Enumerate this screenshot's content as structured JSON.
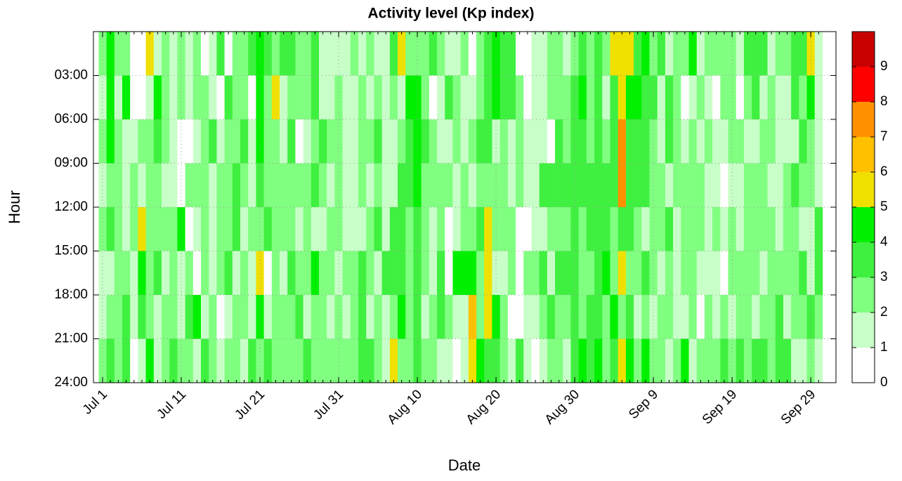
{
  "chart_data": {
    "type": "heatmap",
    "title": "Activity level (Kp index)",
    "x_label": "Date",
    "y_label": "Hour",
    "x": [
      0,
      1,
      2,
      3,
      4,
      5,
      6,
      7,
      8,
      9,
      10,
      11,
      12,
      13,
      14,
      15,
      16,
      17,
      18,
      19,
      20,
      21,
      22,
      23,
      24,
      25,
      26,
      27,
      28,
      29,
      30,
      31,
      32,
      33,
      34,
      35,
      36,
      37,
      38,
      39,
      40,
      41,
      42,
      43,
      44,
      45,
      46,
      47,
      48,
      49,
      50,
      51,
      52,
      53,
      54,
      55,
      56,
      57,
      58,
      59,
      60,
      61,
      62,
      63,
      64,
      65,
      66,
      67,
      68,
      69,
      70,
      71,
      72,
      73,
      74,
      75,
      76,
      77,
      78,
      79,
      80,
      81,
      82,
      83,
      84,
      85,
      86,
      87,
      88,
      89,
      90,
      91
    ],
    "y_bins": [
      0,
      3,
      6,
      9,
      12,
      15,
      18,
      21,
      24
    ],
    "z": [
      [
        2,
        4,
        2,
        2,
        0,
        0,
        5,
        1,
        2,
        1,
        2,
        1,
        2,
        0,
        1,
        3,
        0,
        2,
        2,
        3,
        4,
        3,
        2,
        3,
        3,
        2,
        2,
        3,
        1,
        1,
        1,
        1,
        2,
        1,
        2,
        1,
        1,
        3,
        5,
        2,
        2,
        2,
        3,
        2,
        1,
        1,
        2,
        0,
        2,
        3,
        4,
        3,
        3,
        0,
        0,
        1,
        1,
        2,
        2,
        1,
        2,
        3,
        2,
        3,
        2,
        5,
        5,
        5,
        3,
        4,
        2,
        3,
        1,
        2,
        2,
        4,
        1,
        2,
        2,
        2,
        2,
        1,
        3,
        3,
        3,
        1,
        2,
        2,
        3,
        3,
        5,
        1
      ],
      [
        1,
        4,
        1,
        4,
        0,
        0,
        1,
        4,
        2,
        1,
        2,
        1,
        2,
        2,
        1,
        0,
        3,
        2,
        2,
        0,
        4,
        2,
        5,
        1,
        2,
        2,
        2,
        3,
        1,
        1,
        2,
        1,
        1,
        2,
        1,
        2,
        1,
        2,
        1,
        4,
        4,
        2,
        0,
        1,
        3,
        2,
        1,
        1,
        2,
        3,
        4,
        3,
        3,
        2,
        0,
        1,
        1,
        2,
        2,
        2,
        3,
        4,
        2,
        3,
        1,
        3,
        5,
        4,
        4,
        3,
        3,
        1,
        3,
        2,
        0,
        1,
        2,
        1,
        0,
        2,
        2,
        0,
        2,
        3,
        1,
        2,
        1,
        1,
        3,
        2,
        4,
        1
      ],
      [
        2,
        4,
        2,
        1,
        1,
        2,
        2,
        3,
        2,
        1,
        0,
        0,
        1,
        2,
        3,
        1,
        2,
        2,
        3,
        1,
        4,
        2,
        2,
        1,
        3,
        0,
        1,
        2,
        3,
        2,
        2,
        1,
        1,
        2,
        2,
        3,
        1,
        1,
        2,
        3,
        4,
        3,
        2,
        1,
        1,
        2,
        1,
        2,
        3,
        3,
        1,
        2,
        1,
        2,
        1,
        1,
        1,
        0,
        3,
        2,
        3,
        3,
        2,
        3,
        2,
        3,
        7,
        3,
        3,
        3,
        2,
        1,
        3,
        2,
        1,
        2,
        1,
        2,
        1,
        1,
        2,
        2,
        1,
        1,
        2,
        2,
        1,
        1,
        1,
        3,
        2,
        1
      ],
      [
        1,
        2,
        2,
        1,
        2,
        1,
        2,
        2,
        1,
        1,
        0,
        2,
        2,
        2,
        1,
        2,
        2,
        3,
        2,
        1,
        3,
        2,
        2,
        2,
        2,
        2,
        2,
        3,
        2,
        1,
        2,
        1,
        1,
        2,
        1,
        2,
        1,
        1,
        3,
        3,
        4,
        2,
        2,
        2,
        2,
        1,
        2,
        1,
        2,
        2,
        2,
        2,
        1,
        2,
        1,
        1,
        3,
        3,
        3,
        3,
        3,
        3,
        3,
        3,
        3,
        3,
        7,
        3,
        3,
        3,
        2,
        2,
        1,
        2,
        2,
        2,
        2,
        1,
        1,
        0,
        1,
        1,
        2,
        2,
        2,
        1,
        1,
        2,
        3,
        2,
        2,
        1
      ],
      [
        2,
        3,
        2,
        1,
        2,
        5,
        2,
        2,
        2,
        2,
        4,
        0,
        1,
        2,
        1,
        2,
        2,
        3,
        1,
        2,
        2,
        3,
        2,
        2,
        2,
        1,
        2,
        1,
        1,
        2,
        2,
        1,
        1,
        1,
        2,
        3,
        1,
        3,
        3,
        2,
        3,
        2,
        1,
        2,
        0,
        1,
        2,
        2,
        3,
        5,
        2,
        2,
        2,
        0,
        0,
        1,
        1,
        2,
        2,
        2,
        3,
        2,
        3,
        3,
        3,
        2,
        3,
        3,
        2,
        1,
        2,
        2,
        3,
        1,
        2,
        2,
        2,
        1,
        2,
        1,
        2,
        1,
        2,
        2,
        2,
        2,
        1,
        2,
        2,
        1,
        1,
        3
      ],
      [
        1,
        1,
        2,
        2,
        1,
        4,
        2,
        3,
        1,
        2,
        1,
        2,
        0,
        2,
        1,
        2,
        3,
        1,
        2,
        1,
        5,
        0,
        2,
        1,
        3,
        2,
        2,
        4,
        2,
        2,
        1,
        2,
        2,
        3,
        2,
        1,
        3,
        3,
        3,
        2,
        3,
        2,
        1,
        3,
        0,
        4,
        4,
        4,
        2,
        5,
        1,
        1,
        2,
        0,
        2,
        2,
        3,
        1,
        3,
        3,
        3,
        2,
        2,
        3,
        4,
        2,
        5,
        2,
        2,
        3,
        2,
        1,
        2,
        1,
        2,
        2,
        1,
        1,
        1,
        0,
        2,
        2,
        2,
        2,
        1,
        2,
        2,
        2,
        2,
        3,
        1,
        3
      ],
      [
        1,
        2,
        2,
        3,
        1,
        3,
        2,
        1,
        2,
        2,
        1,
        3,
        4,
        1,
        2,
        0,
        1,
        2,
        2,
        1,
        4,
        1,
        2,
        2,
        2,
        3,
        1,
        2,
        2,
        1,
        2,
        1,
        2,
        3,
        1,
        2,
        1,
        2,
        4,
        2,
        3,
        1,
        2,
        3,
        2,
        1,
        1,
        6,
        2,
        5,
        4,
        2,
        0,
        0,
        1,
        1,
        2,
        3,
        2,
        2,
        3,
        2,
        3,
        3,
        2,
        4,
        2,
        3,
        1,
        2,
        1,
        2,
        2,
        1,
        1,
        2,
        0,
        2,
        1,
        2,
        1,
        2,
        2,
        1,
        2,
        2,
        3,
        1,
        2,
        2,
        3,
        2
      ],
      [
        2,
        3,
        2,
        3,
        0,
        1,
        4,
        1,
        2,
        3,
        2,
        2,
        1,
        3,
        2,
        1,
        2,
        2,
        1,
        3,
        2,
        3,
        2,
        2,
        2,
        2,
        3,
        2,
        2,
        2,
        2,
        2,
        2,
        3,
        3,
        2,
        1,
        5,
        2,
        2,
        3,
        2,
        2,
        1,
        1,
        0,
        1,
        5,
        4,
        3,
        3,
        2,
        1,
        3,
        1,
        0,
        1,
        2,
        2,
        1,
        3,
        4,
        3,
        4,
        2,
        3,
        5,
        4,
        2,
        4,
        2,
        2,
        1,
        2,
        4,
        1,
        2,
        2,
        2,
        3,
        2,
        3,
        2,
        3,
        3,
        2,
        3,
        3,
        1,
        1,
        2,
        1
      ]
    ],
    "xlim": [
      -1.16,
      93.2
    ],
    "xticks": [
      {
        "value": 0,
        "label": "Jul 1"
      },
      {
        "value": 10,
        "label": "Jul 11"
      },
      {
        "value": 20,
        "label": "Jul 21"
      },
      {
        "value": 30,
        "label": "Jul 31"
      },
      {
        "value": 40,
        "label": "Aug 10"
      },
      {
        "value": 50,
        "label": "Aug 20"
      },
      {
        "value": 60,
        "label": "Aug 30"
      },
      {
        "value": 70,
        "label": "Sep 9"
      },
      {
        "value": 80,
        "label": "Sep 19"
      },
      {
        "value": 90,
        "label": "Sep 29"
      }
    ],
    "ylim": [
      0,
      24
    ],
    "yticks": [
      {
        "value": 3,
        "label": "03:00"
      },
      {
        "value": 6,
        "label": "06:00"
      },
      {
        "value": 9,
        "label": "09:00"
      },
      {
        "value": 12,
        "label": "12:00"
      },
      {
        "value": 15,
        "label": "15:00"
      },
      {
        "value": 18,
        "label": "18:00"
      },
      {
        "value": 21,
        "label": "21:00"
      },
      {
        "value": 24,
        "label": "24:00"
      }
    ],
    "grid": true,
    "colorbar": {
      "lim": [
        0,
        10
      ],
      "ticks": [
        0,
        1,
        2,
        3,
        4,
        5,
        6,
        7,
        8,
        9
      ],
      "colors": [
        "#ffffff",
        "#c8ffc8",
        "#80ff80",
        "#40f040",
        "#00f000",
        "#f0e000",
        "#ffc000",
        "#ff9000",
        "#ff0000",
        "#c80000"
      ]
    }
  }
}
